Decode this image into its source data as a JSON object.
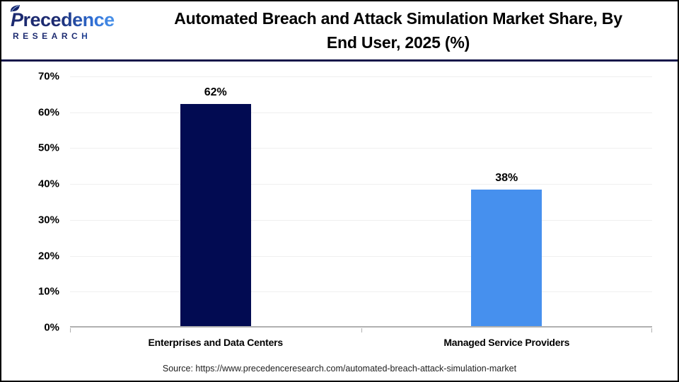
{
  "header": {
    "logo": {
      "brand_initial": "P",
      "brand_rest": "recedence",
      "subtitle": "RESEARCH"
    },
    "title_line1": "Automated Breach and Attack Simulation Market Share, By",
    "title_line2": "End User, 2025 (%)"
  },
  "chart_data": {
    "type": "bar",
    "title": "Automated Breach and Attack Simulation Market Share, By End User, 2025 (%)",
    "categories": [
      "Enterprises and Data Centers",
      "Managed Service Providers"
    ],
    "values": [
      62,
      38
    ],
    "value_labels": [
      "62%",
      "38%"
    ],
    "bar_colors": [
      "#020b52",
      "#4690ee"
    ],
    "xlabel": "",
    "ylabel": "",
    "ylim": [
      0,
      70
    ],
    "yticks": [
      "0%",
      "10%",
      "20%",
      "30%",
      "40%",
      "50%",
      "60%",
      "70%"
    ],
    "grid": true,
    "legend": false
  },
  "footer": {
    "source": "Source: https://www.precedenceresearch.com/automated-breach-attack-simulation-market"
  },
  "colors": {
    "navy_bar": "#020b52",
    "blue_bar": "#4690ee",
    "header_rule": "#15164a",
    "grid_line": "#efefef",
    "axis_line": "#b0b0b0",
    "logo_navy": "#1c2a70",
    "logo_blue": "#4a93ea"
  }
}
